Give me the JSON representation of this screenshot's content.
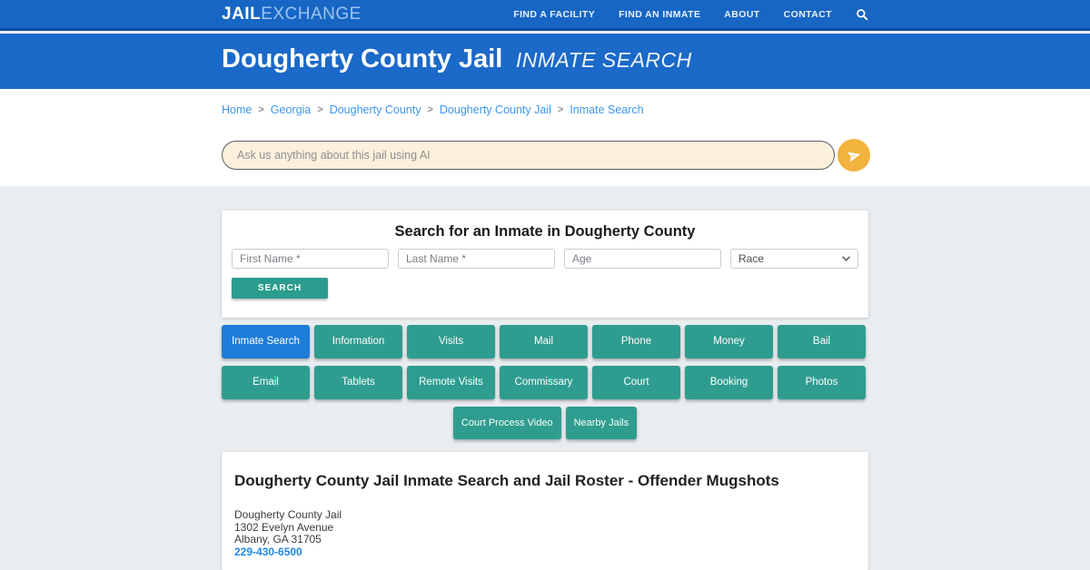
{
  "header": {
    "logo": {
      "part1": "JAIL",
      "part2": "EXCHANGE"
    },
    "nav": [
      {
        "label": "FIND A FACILITY"
      },
      {
        "label": "FIND AN INMATE"
      },
      {
        "label": "ABOUT"
      },
      {
        "label": "CONTACT"
      }
    ]
  },
  "banner": {
    "title": "Dougherty County Jail",
    "subtitle": "INMATE SEARCH"
  },
  "breadcrumb": {
    "items": [
      "Home",
      "Georgia",
      "Dougherty County",
      "Dougherty County Jail",
      "Inmate Search"
    ],
    "separator": ">"
  },
  "ai_search": {
    "placeholder": "Ask us anything about this jail using AI"
  },
  "search_card": {
    "title": "Search for an Inmate in Dougherty County",
    "first_name_placeholder": "First Name *",
    "last_name_placeholder": "Last Name *",
    "age_placeholder": "Age",
    "race_value": "Race",
    "search_button": "SEARCH"
  },
  "nav_grid": {
    "buttons": [
      {
        "label": "Inmate Search",
        "active": true
      },
      {
        "label": "Information",
        "active": false
      },
      {
        "label": "Visits",
        "active": false
      },
      {
        "label": "Mail",
        "active": false
      },
      {
        "label": "Phone",
        "active": false
      },
      {
        "label": "Money",
        "active": false
      },
      {
        "label": "Bail",
        "active": false
      },
      {
        "label": "Email",
        "active": false
      },
      {
        "label": "Tablets",
        "active": false
      },
      {
        "label": "Remote Visits",
        "active": false
      },
      {
        "label": "Commissary",
        "active": false
      },
      {
        "label": "Court",
        "active": false
      },
      {
        "label": "Booking",
        "active": false
      },
      {
        "label": "Photos",
        "active": false
      }
    ],
    "extra_buttons": [
      "Court Process Video",
      "Nearby Jails"
    ]
  },
  "info_card": {
    "heading": "Dougherty County Jail Inmate Search and Jail Roster - Offender Mugshots",
    "address_lines": [
      "Dougherty County Jail",
      "1302 Evelyn Avenue",
      "Albany, GA 31705"
    ],
    "phone": "229-430-6500"
  },
  "colors": {
    "topbar_blue": "#1766C4",
    "divider_blue": "#0C4FA0",
    "banner_blue": "#1B69C8",
    "teal": "#2E9D8F",
    "active_blue": "#1F7CD9",
    "send_orange": "#F1B23E",
    "ai_cream": "#FCF1DD",
    "link_blue": "#3D97E8",
    "phone_blue": "#1E88E5",
    "page_bg": "#E9EDF0"
  }
}
